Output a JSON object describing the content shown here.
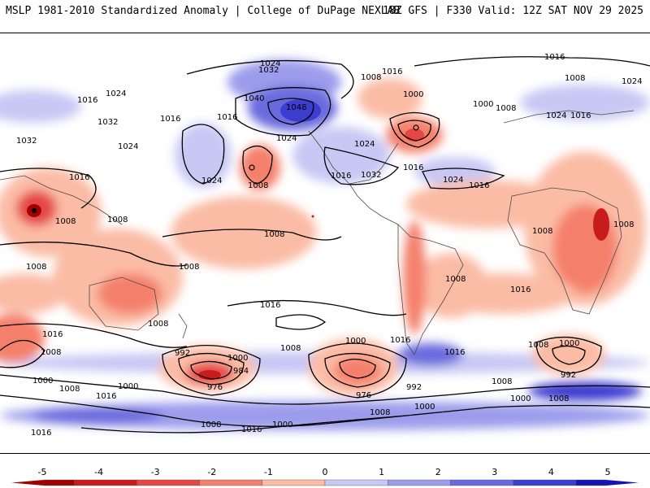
{
  "header": {
    "title_left": "MSLP 1981-2010 Standardized Anomaly | College of DuPage NEXLAB",
    "title_right": "18Z GFS | F330 Valid: 12Z SAT NOV 29 2025"
  },
  "colors": {
    "background": "#ffffff",
    "contour": "#000000",
    "coast": "#4a4a4a"
  },
  "isobar_labels": [
    "1024",
    "1032",
    "1016",
    "1008",
    "1000",
    "1040",
    "1048",
    "992",
    "984",
    "976"
  ],
  "colorbar": {
    "ticks": [
      "-5",
      "-4",
      "-3",
      "-2",
      "-1",
      "0",
      "1",
      "2",
      "3",
      "4",
      "5"
    ],
    "colors": [
      "#a30000",
      "#c81c1c",
      "#e54747",
      "#f4806c",
      "#fbbca6",
      "#ffffff",
      "#c8c8f4",
      "#9c9cec",
      "#6a6ade",
      "#3d3dd0",
      "#1414b4"
    ]
  }
}
